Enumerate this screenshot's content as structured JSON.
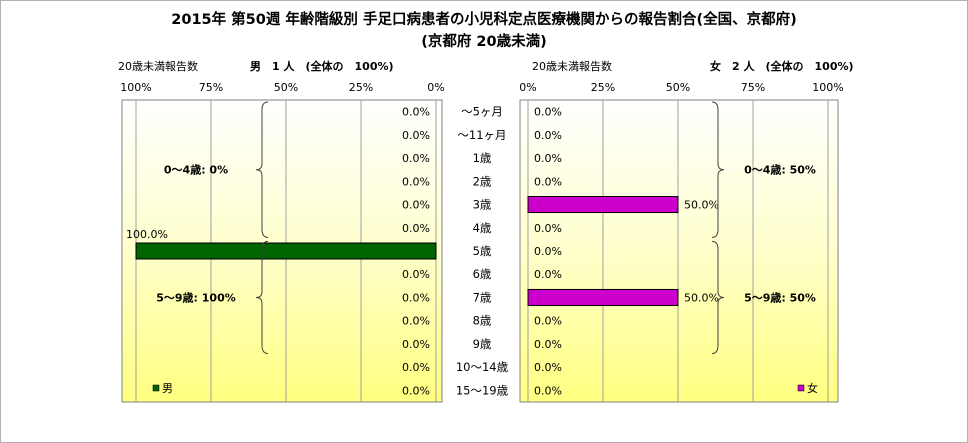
{
  "header": {
    "title": "2015年 第50週 年齢階級別 手足口病患者の小児科定点医療機関からの報告割合(全国、京都府)",
    "subtitle": "(京都府 20歳未満)"
  },
  "chart_data": {
    "type": "bar",
    "orientation": "horizontal-butterfly",
    "categories": [
      "～5ヶ月",
      "～11ヶ月",
      "1歳",
      "2歳",
      "3歳",
      "4歳",
      "5歳",
      "6歳",
      "7歳",
      "8歳",
      "9歳",
      "10～14歳",
      "15～19歳"
    ],
    "xlim": [
      0,
      100
    ],
    "ticks": [
      "0%",
      "25%",
      "50%",
      "75%",
      "100%"
    ],
    "grid": true,
    "series": [
      {
        "name": "男",
        "side": "left",
        "color": "#006400",
        "values": [
          0,
          0,
          0,
          0,
          0,
          0,
          100,
          0,
          0,
          0,
          0,
          0,
          0
        ],
        "labels": [
          "0.0%",
          "0.0%",
          "0.0%",
          "0.0%",
          "0.0%",
          "0.0%",
          "100.0%",
          "0.0%",
          "0.0%",
          "0.0%",
          "0.0%",
          "0.0%",
          "0.0%"
        ],
        "count_label": "20歳未満報告数",
        "total_label": "男　1 人　(全体の　100%)",
        "legend": "男",
        "groups": [
          {
            "label": "0～4歳: 0%",
            "from": 0,
            "to": 5
          },
          {
            "label": "5～9歳: 100%",
            "from": 6,
            "to": 10
          }
        ]
      },
      {
        "name": "女",
        "side": "right",
        "color": "#cc00cc",
        "values": [
          0,
          0,
          0,
          0,
          50,
          0,
          0,
          0,
          50,
          0,
          0,
          0,
          0
        ],
        "labels": [
          "0.0%",
          "0.0%",
          "0.0%",
          "0.0%",
          "50.0%",
          "0.0%",
          "0.0%",
          "0.0%",
          "50.0%",
          "0.0%",
          "0.0%",
          "0.0%",
          "0.0%"
        ],
        "count_label": "20歳未満報告数",
        "total_label": "女　2 人　(全体の　100%)",
        "legend": "女",
        "groups": [
          {
            "label": "0～4歳: 50%",
            "from": 0,
            "to": 5
          },
          {
            "label": "5～9歳: 50%",
            "from": 6,
            "to": 10
          }
        ]
      }
    ]
  }
}
